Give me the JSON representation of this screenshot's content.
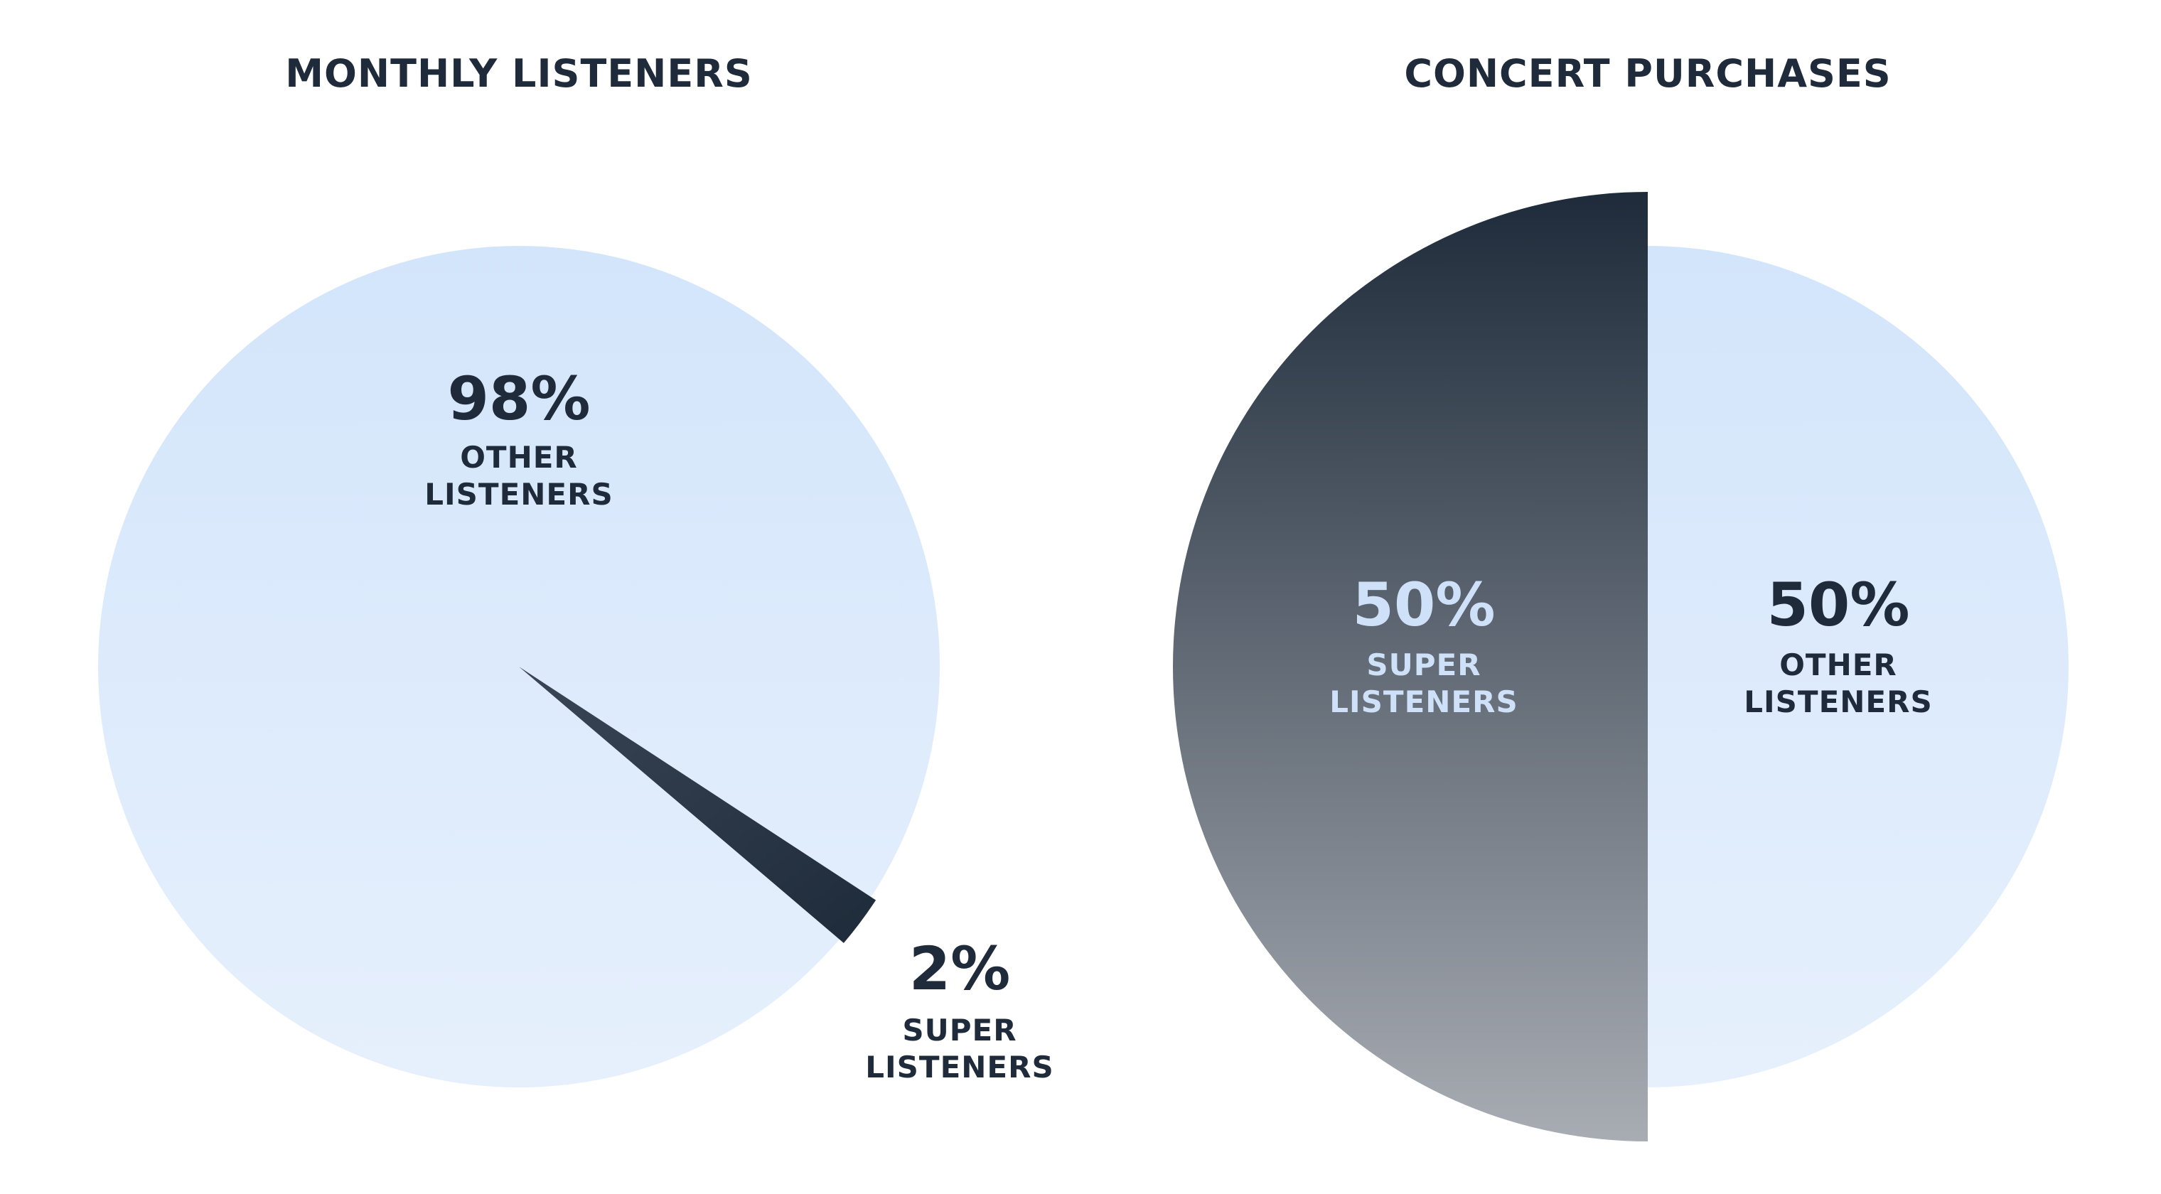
{
  "chart_data": [
    {
      "type": "pie",
      "title": "MONTHLY LISTENERS",
      "slices": [
        {
          "label": "OTHER LISTENERS",
          "label_lines": [
            "OTHER",
            "LISTENERS"
          ],
          "value": 98,
          "value_label": "98%",
          "exploded": false
        },
        {
          "label": "SUPER LISTENERS",
          "label_lines": [
            "SUPER",
            "LISTENERS"
          ],
          "value": 2,
          "value_label": "2%",
          "exploded": true
        }
      ]
    },
    {
      "type": "pie",
      "title": "CONCERT PURCHASES",
      "slices": [
        {
          "label": "OTHER LISTENERS",
          "label_lines": [
            "OTHER",
            "LISTENERS"
          ],
          "value": 50,
          "value_label": "50%",
          "exploded": false
        },
        {
          "label": "SUPER LISTENERS",
          "label_lines": [
            "SUPER",
            "LISTENERS"
          ],
          "value": 50,
          "value_label": "50%",
          "exploded": true
        }
      ]
    }
  ],
  "colors": {
    "light_slice_top": "#d3e5fb",
    "light_slice_bottom": "#e6f0fc",
    "dark_slice_top": "#1e2b3a",
    "dark_slice_bottom": "#a8acb3",
    "text_dark": "#1f2b3b",
    "text_light": "#cfe1f8"
  }
}
